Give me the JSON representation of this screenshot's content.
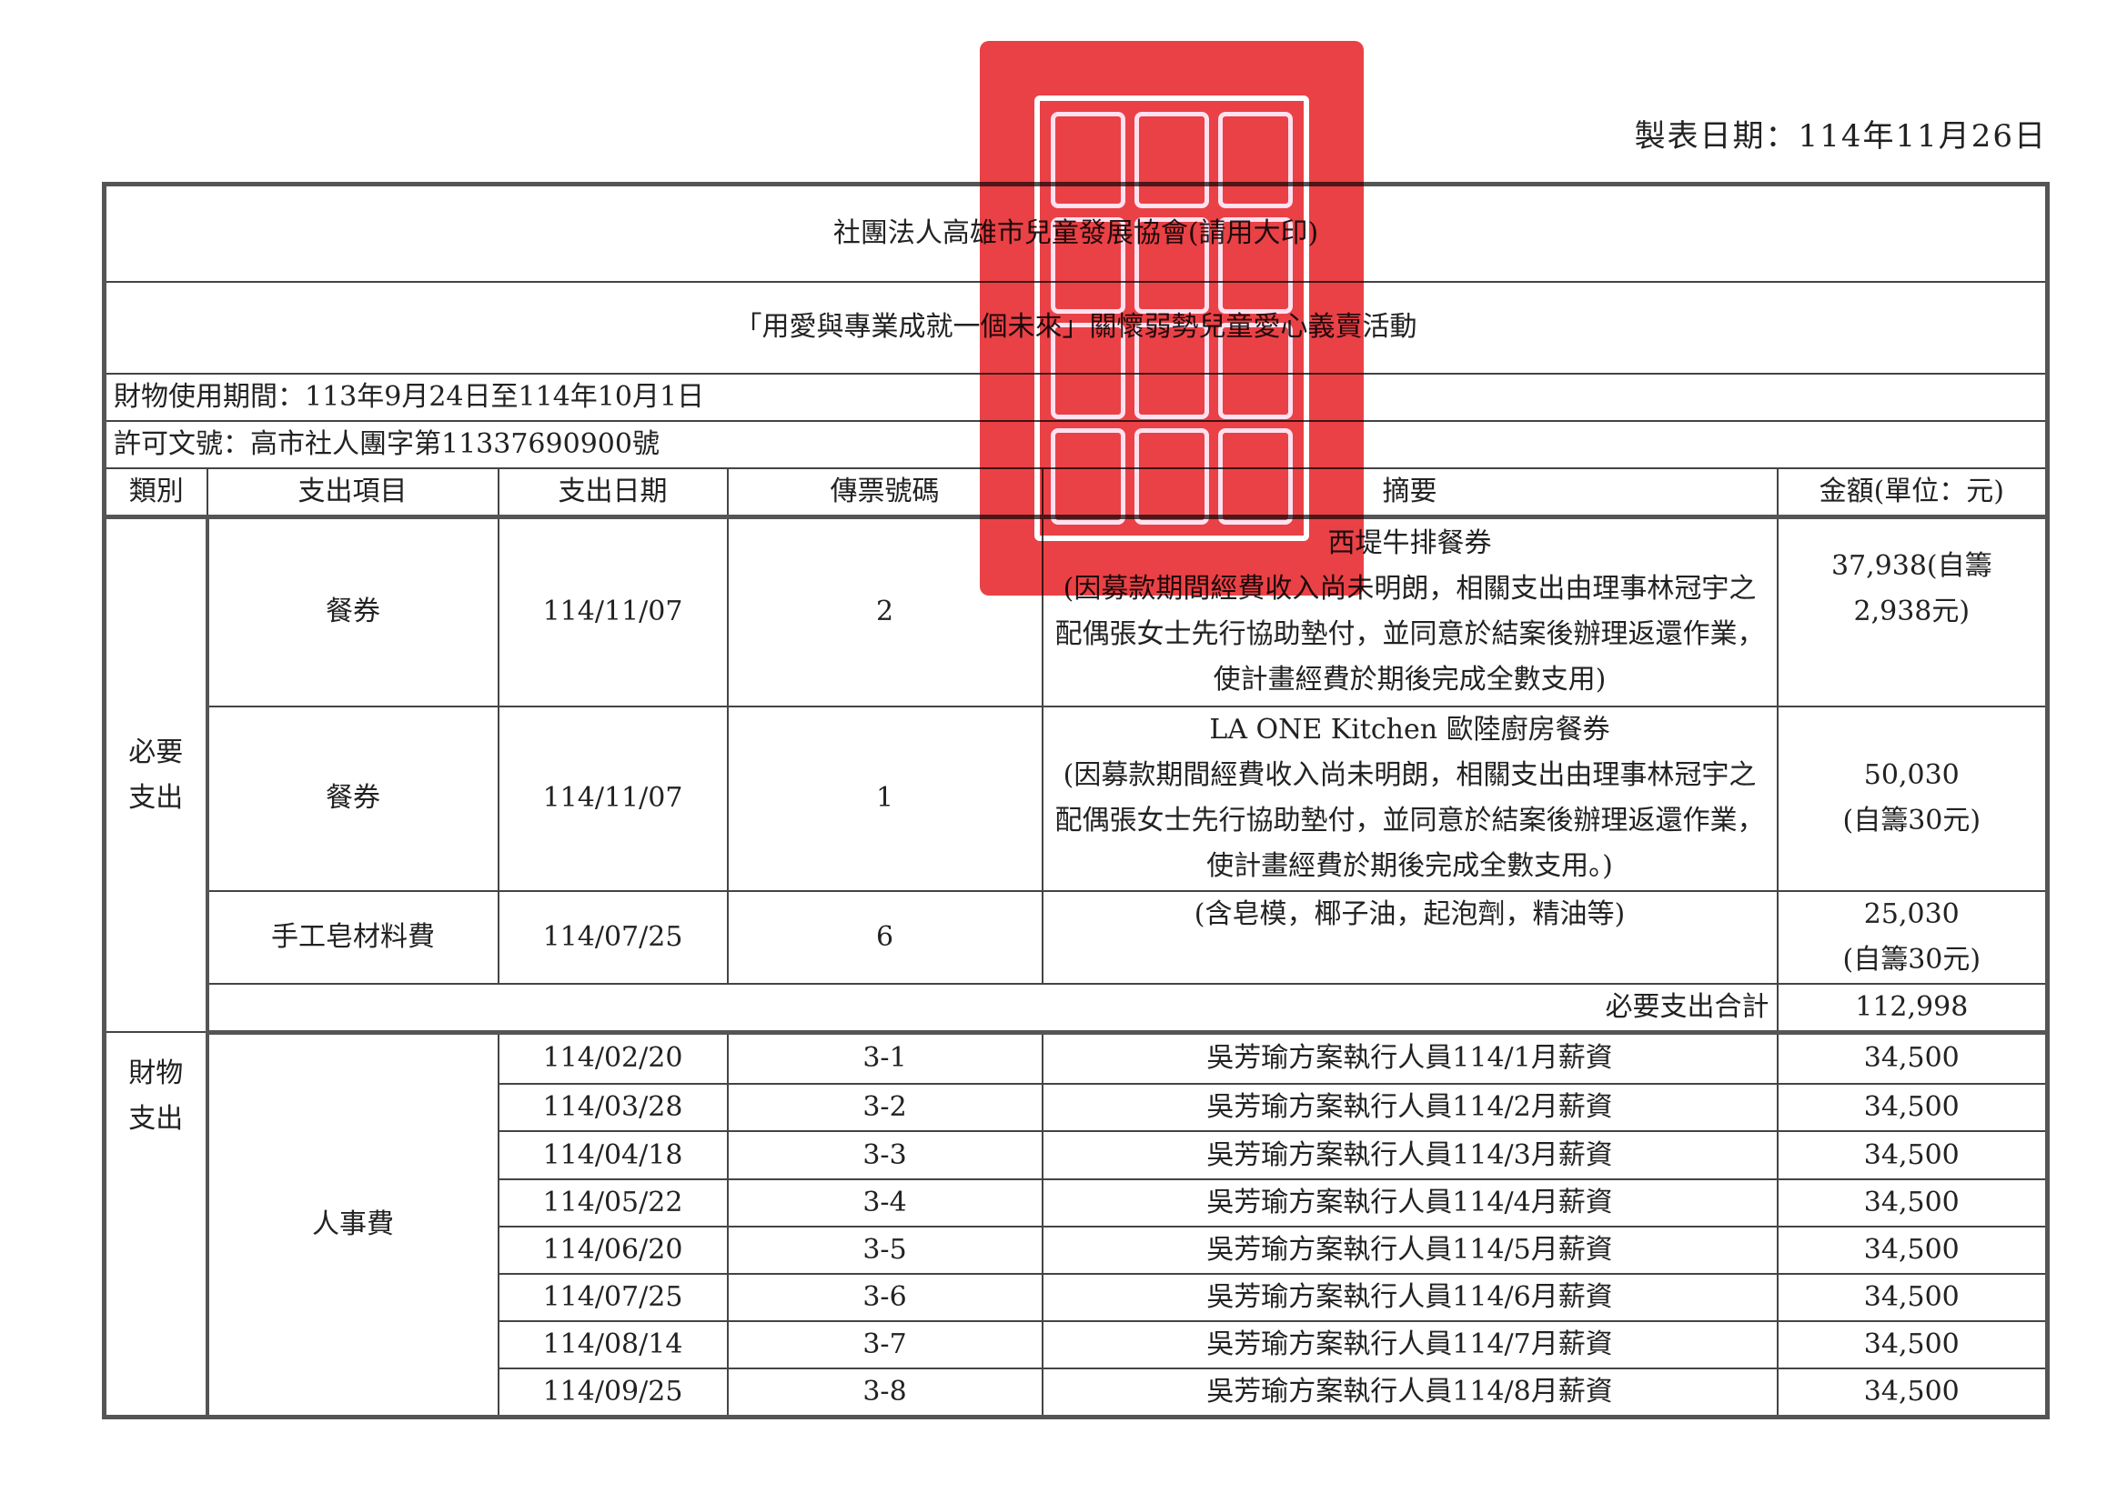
{
  "made_date": "製表日期：114年11月26日",
  "org_title": "社團法人高雄市兒童發展協會(請用大印)",
  "event_title": "「用愛與專業成就一個未來」關懷弱勢兒童愛心義賣活動",
  "period": "財物使用期間：113年9月24日至114年10月1日",
  "permit": "許可文號：高市社人團字第11337690900號",
  "headers": [
    "類別",
    "支出項目",
    "支出日期",
    "傳票號碼",
    "摘要",
    "金額(單位：元)"
  ],
  "required": {
    "category": "必要支出",
    "rows": [
      {
        "item": "餐券",
        "date": "114/11/07",
        "voucher": "2",
        "summary_title": "西堤牛排餐券",
        "summary_note": "(因募款期間經費收入尚未明朗，相關支出由理事林冠宇之配偶張女士先行協助墊付，並同意於結案後辦理返還作業，使計畫經費於期後完成全數支用)",
        "amount": "37,938(自籌",
        "amount_note": "2,938元)"
      },
      {
        "item": "餐券",
        "date": "114/11/07",
        "voucher": "1",
        "summary_title": "LA ONE Kitchen 歐陸廚房餐券",
        "summary_note": "(因募款期間經費收入尚未明朗，相關支出由理事林冠宇之配偶張女士先行協助墊付，並同意於結案後辦理返還作業，使計畫經費於期後完成全數支用。)",
        "amount": "50,030",
        "amount_note": "(自籌30元)"
      },
      {
        "item": "手工皂材料費",
        "date": "114/07/25",
        "voucher": "6",
        "summary_title": "(含皂模，椰子油，起泡劑，精油等)",
        "summary_note": "",
        "amount": "25,030",
        "amount_note": "(自籌30元)"
      }
    ],
    "total_label": "必要支出合計",
    "total": "112,998"
  },
  "property": {
    "category": "財物支出",
    "item": "人事費",
    "rows": [
      {
        "date": "114/02/20",
        "voucher": "3-1",
        "summary": "吳芳瑜方案執行人員114/1月薪資",
        "amount": "34,500"
      },
      {
        "date": "114/03/28",
        "voucher": "3-2",
        "summary": "吳芳瑜方案執行人員114/2月薪資",
        "amount": "34,500"
      },
      {
        "date": "114/04/18",
        "voucher": "3-3",
        "summary": "吳芳瑜方案執行人員114/3月薪資",
        "amount": "34,500"
      },
      {
        "date": "114/05/22",
        "voucher": "3-4",
        "summary": "吳芳瑜方案執行人員114/4月薪資",
        "amount": "34,500"
      },
      {
        "date": "114/06/20",
        "voucher": "3-5",
        "summary": "吳芳瑜方案執行人員114/5月薪資",
        "amount": "34,500"
      },
      {
        "date": "114/07/25",
        "voucher": "3-6",
        "summary": "吳芳瑜方案執行人員114/6月薪資",
        "amount": "34,500"
      },
      {
        "date": "114/08/14",
        "voucher": "3-7",
        "summary": "吳芳瑜方案執行人員114/7月薪資",
        "amount": "34,500"
      },
      {
        "date": "114/09/25",
        "voucher": "3-8",
        "summary": "吳芳瑜方案執行人員114/8月薪資",
        "amount": "34,500"
      }
    ]
  },
  "stamp_color": "#e8262c"
}
